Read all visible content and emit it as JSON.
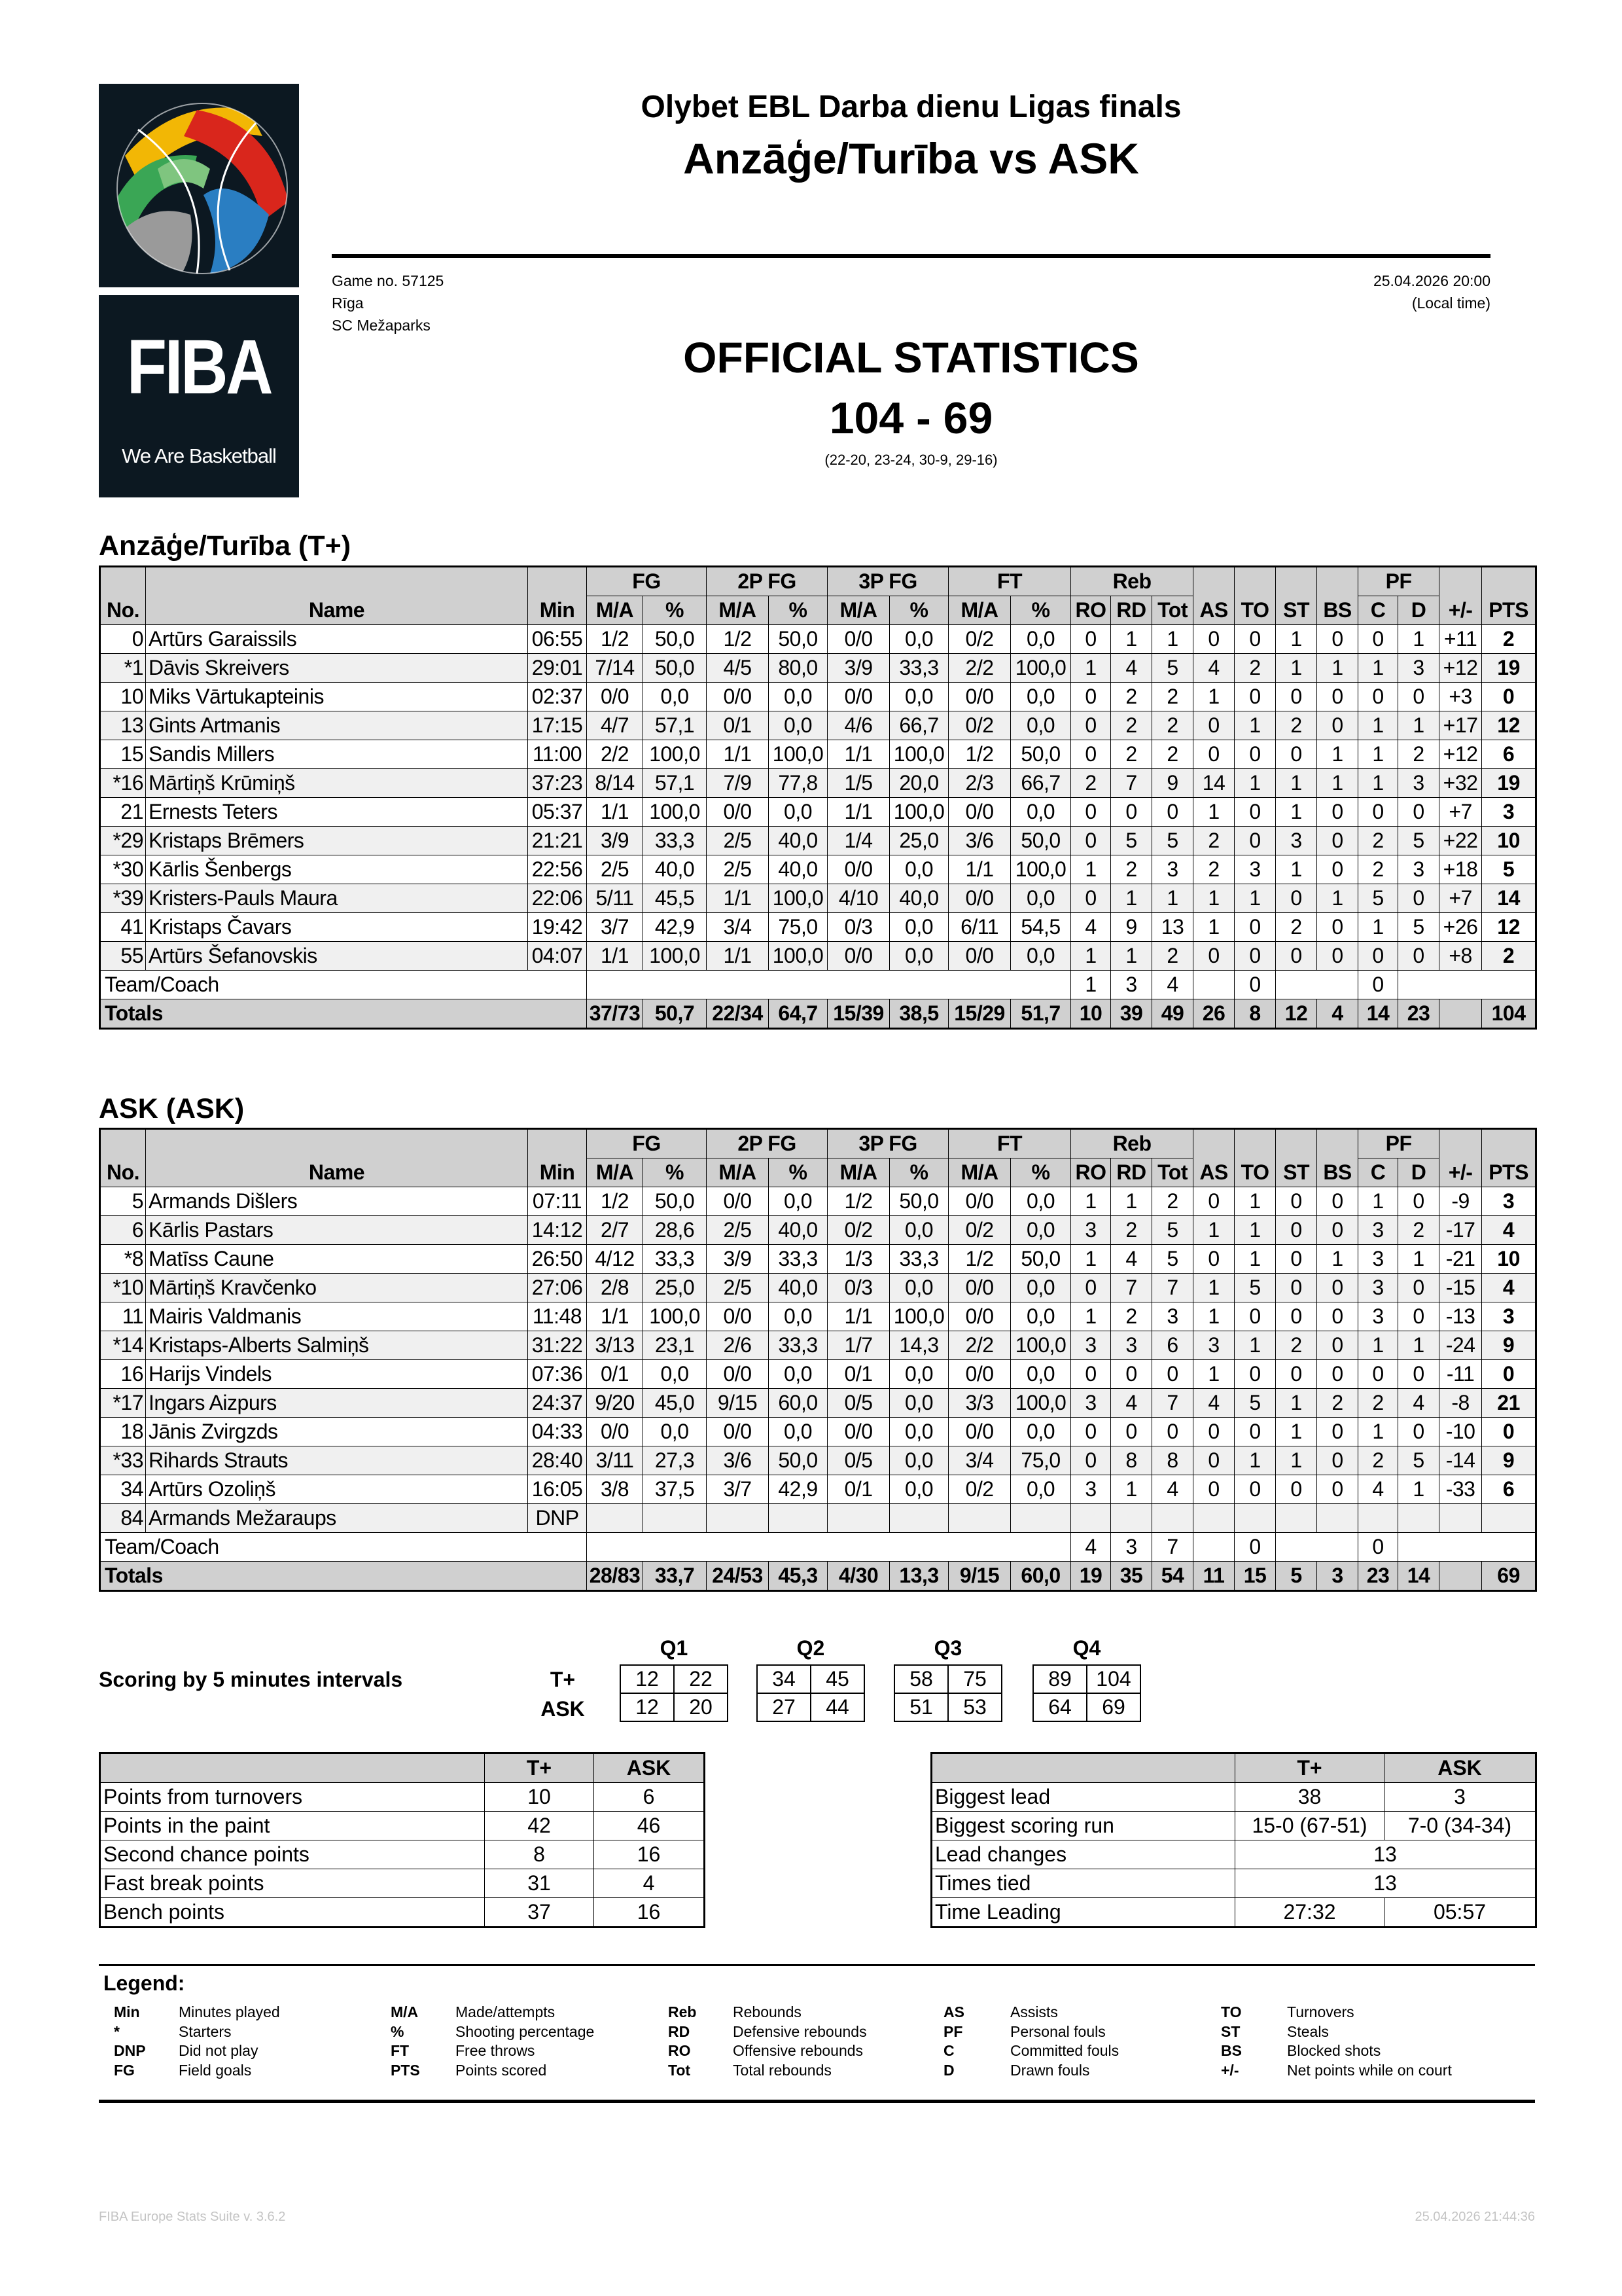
{
  "logo": {
    "brand": "FIBA",
    "tagline": "We Are Basketball"
  },
  "header": {
    "competition": "Olybet EBL Darba dienu Ligas finals",
    "matchup": "Anzāģe/Turība vs ASK",
    "game_no": "Game no. 57125",
    "city": "Rīga",
    "venue": "SC Mežaparks",
    "datetime": "25.04.2026 20:00",
    "local_time": "(Local time)",
    "title": "OFFICIAL STATISTICS",
    "score": "104 - 69",
    "periods": "(22-20, 23-24, 30-9, 29-16)"
  },
  "columns": {
    "no": "No.",
    "name": "Name",
    "min": "Min",
    "groups": {
      "fg": "FG",
      "p2": "2P FG",
      "p3": "3P FG",
      "ft": "FT",
      "reb": "Reb",
      "pf": "PF"
    },
    "ma": "M/A",
    "pct": "%",
    "ro": "RO",
    "rd": "RD",
    "tot": "Tot",
    "as": "AS",
    "to": "TO",
    "st": "ST",
    "bs": "BS",
    "c": "C",
    "d": "D",
    "pm": "+/-",
    "pts": "PTS"
  },
  "teams": [
    {
      "title": "Anzāģe/Turība (T+)",
      "players": [
        [
          "0",
          "Artūrs Garaissils",
          "06:55",
          "1/2",
          "50,0",
          "1/2",
          "50,0",
          "0/0",
          "0,0",
          "0/2",
          "0,0",
          "0",
          "1",
          "1",
          "0",
          "0",
          "1",
          "0",
          "0",
          "1",
          "+11",
          "2"
        ],
        [
          "*1",
          "Dāvis Skreivers",
          "29:01",
          "7/14",
          "50,0",
          "4/5",
          "80,0",
          "3/9",
          "33,3",
          "2/2",
          "100,0",
          "1",
          "4",
          "5",
          "4",
          "2",
          "1",
          "1",
          "1",
          "3",
          "+12",
          "19"
        ],
        [
          "10",
          "Miks Vārtukapteinis",
          "02:37",
          "0/0",
          "0,0",
          "0/0",
          "0,0",
          "0/0",
          "0,0",
          "0/0",
          "0,0",
          "0",
          "2",
          "2",
          "1",
          "0",
          "0",
          "0",
          "0",
          "0",
          "+3",
          "0"
        ],
        [
          "13",
          "Gints Artmanis",
          "17:15",
          "4/7",
          "57,1",
          "0/1",
          "0,0",
          "4/6",
          "66,7",
          "0/2",
          "0,0",
          "0",
          "2",
          "2",
          "0",
          "1",
          "2",
          "0",
          "1",
          "1",
          "+17",
          "12"
        ],
        [
          "15",
          "Sandis Millers",
          "11:00",
          "2/2",
          "100,0",
          "1/1",
          "100,0",
          "1/1",
          "100,0",
          "1/2",
          "50,0",
          "0",
          "2",
          "2",
          "0",
          "0",
          "0",
          "1",
          "1",
          "2",
          "+12",
          "6"
        ],
        [
          "*16",
          "Mārtiņš Krūmiņš",
          "37:23",
          "8/14",
          "57,1",
          "7/9",
          "77,8",
          "1/5",
          "20,0",
          "2/3",
          "66,7",
          "2",
          "7",
          "9",
          "14",
          "1",
          "1",
          "1",
          "1",
          "3",
          "+32",
          "19"
        ],
        [
          "21",
          "Ernests Teters",
          "05:37",
          "1/1",
          "100,0",
          "0/0",
          "0,0",
          "1/1",
          "100,0",
          "0/0",
          "0,0",
          "0",
          "0",
          "0",
          "1",
          "0",
          "1",
          "0",
          "0",
          "0",
          "+7",
          "3"
        ],
        [
          "*29",
          "Kristaps Brēmers",
          "21:21",
          "3/9",
          "33,3",
          "2/5",
          "40,0",
          "1/4",
          "25,0",
          "3/6",
          "50,0",
          "0",
          "5",
          "5",
          "2",
          "0",
          "3",
          "0",
          "2",
          "5",
          "+22",
          "10"
        ],
        [
          "*30",
          "Kārlis Šenbergs",
          "22:56",
          "2/5",
          "40,0",
          "2/5",
          "40,0",
          "0/0",
          "0,0",
          "1/1",
          "100,0",
          "1",
          "2",
          "3",
          "2",
          "3",
          "1",
          "0",
          "2",
          "3",
          "+18",
          "5"
        ],
        [
          "*39",
          "Kristers-Pauls Maura",
          "22:06",
          "5/11",
          "45,5",
          "1/1",
          "100,0",
          "4/10",
          "40,0",
          "0/0",
          "0,0",
          "0",
          "1",
          "1",
          "1",
          "1",
          "0",
          "1",
          "5",
          "0",
          "+7",
          "14"
        ],
        [
          "41",
          "Kristaps Čavars",
          "19:42",
          "3/7",
          "42,9",
          "3/4",
          "75,0",
          "0/3",
          "0,0",
          "6/11",
          "54,5",
          "4",
          "9",
          "13",
          "1",
          "0",
          "2",
          "0",
          "1",
          "5",
          "+26",
          "12"
        ],
        [
          "55",
          "Artūrs Šefanovskis",
          "04:07",
          "1/1",
          "100,0",
          "1/1",
          "100,0",
          "0/0",
          "0,0",
          "0/0",
          "0,0",
          "1",
          "1",
          "2",
          "0",
          "0",
          "0",
          "0",
          "0",
          "0",
          "+8",
          "2"
        ]
      ],
      "team_coach": {
        "label": "Team/Coach",
        "ro": "1",
        "rd": "3",
        "tot": "4",
        "to": "0",
        "c": "0"
      },
      "totals": {
        "label": "Totals",
        "values": [
          "37/73",
          "50,7",
          "22/34",
          "64,7",
          "15/39",
          "38,5",
          "15/29",
          "51,7",
          "10",
          "39",
          "49",
          "26",
          "8",
          "12",
          "4",
          "14",
          "23",
          "",
          "104"
        ]
      }
    },
    {
      "title": "ASK (ASK)",
      "players": [
        [
          "5",
          "Armands Dišlers",
          "07:11",
          "1/2",
          "50,0",
          "0/0",
          "0,0",
          "1/2",
          "50,0",
          "0/0",
          "0,0",
          "1",
          "1",
          "2",
          "0",
          "1",
          "0",
          "0",
          "1",
          "0",
          "-9",
          "3"
        ],
        [
          "6",
          "Kārlis Pastars",
          "14:12",
          "2/7",
          "28,6",
          "2/5",
          "40,0",
          "0/2",
          "0,0",
          "0/2",
          "0,0",
          "3",
          "2",
          "5",
          "1",
          "1",
          "0",
          "0",
          "3",
          "2",
          "-17",
          "4"
        ],
        [
          "*8",
          "Matīss Caune",
          "26:50",
          "4/12",
          "33,3",
          "3/9",
          "33,3",
          "1/3",
          "33,3",
          "1/2",
          "50,0",
          "1",
          "4",
          "5",
          "0",
          "1",
          "0",
          "1",
          "3",
          "1",
          "-21",
          "10"
        ],
        [
          "*10",
          "Mārtiņš Kravčenko",
          "27:06",
          "2/8",
          "25,0",
          "2/5",
          "40,0",
          "0/3",
          "0,0",
          "0/0",
          "0,0",
          "0",
          "7",
          "7",
          "1",
          "5",
          "0",
          "0",
          "3",
          "0",
          "-15",
          "4"
        ],
        [
          "11",
          "Mairis Valdmanis",
          "11:48",
          "1/1",
          "100,0",
          "0/0",
          "0,0",
          "1/1",
          "100,0",
          "0/0",
          "0,0",
          "1",
          "2",
          "3",
          "1",
          "0",
          "0",
          "0",
          "3",
          "0",
          "-13",
          "3"
        ],
        [
          "*14",
          "Kristaps-Alberts Salmiņš",
          "31:22",
          "3/13",
          "23,1",
          "2/6",
          "33,3",
          "1/7",
          "14,3",
          "2/2",
          "100,0",
          "3",
          "3",
          "6",
          "3",
          "1",
          "2",
          "0",
          "1",
          "1",
          "-24",
          "9"
        ],
        [
          "16",
          "Harijs Vindels",
          "07:36",
          "0/1",
          "0,0",
          "0/0",
          "0,0",
          "0/1",
          "0,0",
          "0/0",
          "0,0",
          "0",
          "0",
          "0",
          "1",
          "0",
          "0",
          "0",
          "0",
          "0",
          "-11",
          "0"
        ],
        [
          "*17",
          "Ingars Aizpurs",
          "24:37",
          "9/20",
          "45,0",
          "9/15",
          "60,0",
          "0/5",
          "0,0",
          "3/3",
          "100,0",
          "3",
          "4",
          "7",
          "4",
          "5",
          "1",
          "2",
          "2",
          "4",
          "-8",
          "21"
        ],
        [
          "18",
          "Jānis Zvirgzds",
          "04:33",
          "0/0",
          "0,0",
          "0/0",
          "0,0",
          "0/0",
          "0,0",
          "0/0",
          "0,0",
          "0",
          "0",
          "0",
          "0",
          "0",
          "1",
          "0",
          "1",
          "0",
          "-10",
          "0"
        ],
        [
          "*33",
          "Rihards Strauts",
          "28:40",
          "3/11",
          "27,3",
          "3/6",
          "50,0",
          "0/5",
          "0,0",
          "3/4",
          "75,0",
          "0",
          "8",
          "8",
          "0",
          "1",
          "1",
          "0",
          "2",
          "5",
          "-14",
          "9"
        ],
        [
          "34",
          "Artūrs Ozoliņš",
          "16:05",
          "3/8",
          "37,5",
          "3/7",
          "42,9",
          "0/1",
          "0,0",
          "0/2",
          "0,0",
          "3",
          "1",
          "4",
          "0",
          "0",
          "0",
          "0",
          "4",
          "1",
          "-33",
          "6"
        ],
        [
          "84",
          "Armands Mežaraups",
          "DNP"
        ]
      ],
      "team_coach": {
        "label": "Team/Coach",
        "ro": "4",
        "rd": "3",
        "tot": "7",
        "to": "0",
        "c": "0"
      },
      "totals": {
        "label": "Totals",
        "values": [
          "28/83",
          "33,7",
          "24/53",
          "45,3",
          "4/30",
          "13,3",
          "9/15",
          "60,0",
          "19",
          "35",
          "54",
          "11",
          "15",
          "5",
          "3",
          "23",
          "14",
          "",
          "69"
        ]
      }
    }
  ],
  "scoring": {
    "label": "Scoring by 5 minutes intervals",
    "quarters": [
      "Q1",
      "Q2",
      "Q3",
      "Q4"
    ],
    "rows": [
      {
        "team": "T+",
        "values": [
          "12",
          "22",
          "34",
          "45",
          "58",
          "75",
          "89",
          "104"
        ]
      },
      {
        "team": "ASK",
        "values": [
          "12",
          "20",
          "27",
          "44",
          "51",
          "53",
          "64",
          "69"
        ]
      }
    ]
  },
  "team_stats_left": {
    "headers": [
      "",
      "T+",
      "ASK"
    ],
    "rows": [
      [
        "Points from turnovers",
        "10",
        "6"
      ],
      [
        "Points in the paint",
        "42",
        "46"
      ],
      [
        "Second chance points",
        "8",
        "16"
      ],
      [
        "Fast break points",
        "31",
        "4"
      ],
      [
        "Bench points",
        "37",
        "16"
      ]
    ]
  },
  "team_stats_right": {
    "headers": [
      "",
      "T+",
      "ASK"
    ],
    "rows": [
      [
        "Biggest lead",
        "38",
        "3"
      ],
      [
        "Biggest scoring run",
        "15-0 (67-51)",
        "7-0 (34-34)"
      ],
      [
        "Lead changes",
        "13"
      ],
      [
        "Times tied",
        "13"
      ],
      [
        "Time Leading",
        "27:32",
        "05:57"
      ]
    ]
  },
  "legend": {
    "title": "Legend:",
    "columns": [
      [
        [
          "Min",
          "Minutes played"
        ],
        [
          "*",
          "Starters"
        ],
        [
          "DNP",
          "Did not play"
        ],
        [
          "FG",
          "Field goals"
        ]
      ],
      [
        [
          "M/A",
          "Made/attempts"
        ],
        [
          "%",
          "Shooting percentage"
        ],
        [
          "FT",
          "Free throws"
        ],
        [
          "PTS",
          "Points scored"
        ]
      ],
      [
        [
          "Reb",
          "Rebounds"
        ],
        [
          "RD",
          "Defensive rebounds"
        ],
        [
          "RO",
          "Offensive rebounds"
        ],
        [
          "Tot",
          "Total rebounds"
        ]
      ],
      [
        [
          "AS",
          "Assists"
        ],
        [
          "PF",
          "Personal fouls"
        ],
        [
          "C",
          "Committed fouls"
        ],
        [
          "D",
          "Drawn fouls"
        ]
      ],
      [
        [
          "TO",
          "Turnovers"
        ],
        [
          "ST",
          "Steals"
        ],
        [
          "BS",
          "Blocked shots"
        ],
        [
          "+/-",
          "Net points while on court"
        ]
      ]
    ]
  },
  "footer": {
    "version": "FIBA Europe Stats Suite v. 3.6.2",
    "printed": "25.04.2026 21:44:36"
  }
}
